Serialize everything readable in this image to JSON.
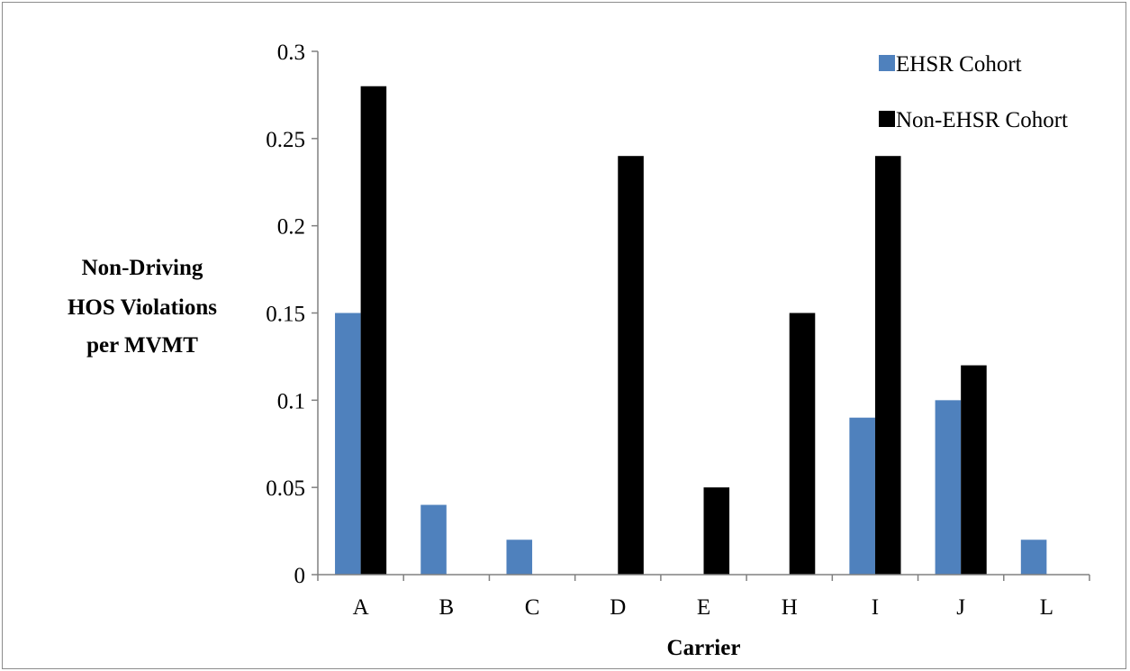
{
  "chart_data": {
    "type": "bar",
    "title": "",
    "xlabel": "Carrier",
    "ylabel_lines": [
      "Non-Driving",
      "HOS Violations",
      "per MVMT"
    ],
    "categories": [
      "A",
      "B",
      "C",
      "D",
      "E",
      "H",
      "I",
      "J",
      "L"
    ],
    "series": [
      {
        "name": "EHSR Cohort",
        "color": "#4f81bd",
        "values": [
          0.15,
          0.04,
          0.02,
          0,
          0,
          0,
          0.09,
          0.1,
          0.02
        ]
      },
      {
        "name": "Non-EHSR Cohort",
        "color": "#000000",
        "values": [
          0.28,
          0,
          0,
          0.24,
          0.05,
          0.15,
          0.24,
          0.12,
          0
        ]
      }
    ],
    "ylim": [
      0,
      0.3
    ],
    "yticks": [
      0,
      0.05,
      0.1,
      0.15,
      0.2,
      0.25,
      0.3
    ],
    "ytick_labels": [
      "0",
      "0.05",
      "0.1",
      "0.15",
      "0.2",
      "0.25",
      "0.3"
    ],
    "grid": false,
    "legend_position": "top-right"
  }
}
